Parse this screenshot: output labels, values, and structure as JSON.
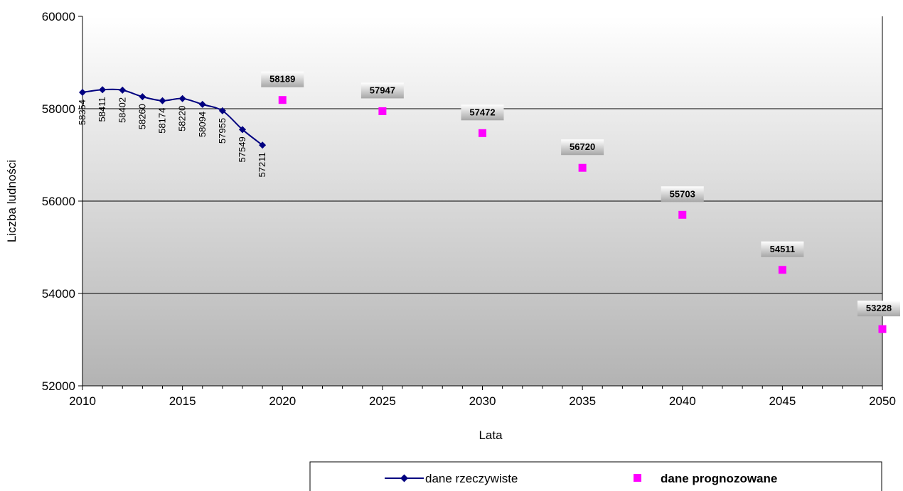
{
  "chart_data": {
    "type": "line",
    "xlabel": "Lata",
    "ylabel": "Liczba ludności",
    "xlim": [
      2010,
      2050
    ],
    "ylim": [
      52000,
      60000
    ],
    "x_ticks": [
      "2010",
      "2015",
      "2020",
      "2025",
      "2030",
      "2035",
      "2040",
      "2045",
      "2050"
    ],
    "y_ticks": [
      "52000",
      "54000",
      "56000",
      "58000",
      "60000"
    ],
    "grid": "horizontal",
    "legend_position": "bottom-right",
    "series": [
      {
        "name": "dane rzeczywiste",
        "style": "line-with-diamond-markers",
        "color": "#000080",
        "x": [
          2010,
          2011,
          2012,
          2013,
          2014,
          2015,
          2016,
          2017,
          2018,
          2019
        ],
        "y": [
          58354,
          58411,
          58402,
          58260,
          58174,
          58220,
          58094,
          57955,
          57549,
          57211
        ],
        "labels": [
          "58354",
          "58411",
          "58402",
          "58260",
          "58174",
          "58220",
          "58094",
          "57955",
          "57549",
          "57211"
        ]
      },
      {
        "name": "dane prognozowane",
        "style": "square-markers",
        "color": "#FF00FF",
        "x": [
          2020,
          2025,
          2030,
          2035,
          2040,
          2045,
          2050
        ],
        "y": [
          58189,
          57947,
          57472,
          56720,
          55703,
          54511,
          53228
        ],
        "labels": [
          "58189",
          "57947",
          "57472",
          "56720",
          "55703",
          "54511",
          "53228"
        ]
      }
    ]
  },
  "colors": {
    "plot_top": "#FFFFFF",
    "plot_bottom": "#B3B3B3",
    "grid": "#000000",
    "label_box_top": "#FFFFFF",
    "label_box_bottom": "#A6A6A6"
  }
}
